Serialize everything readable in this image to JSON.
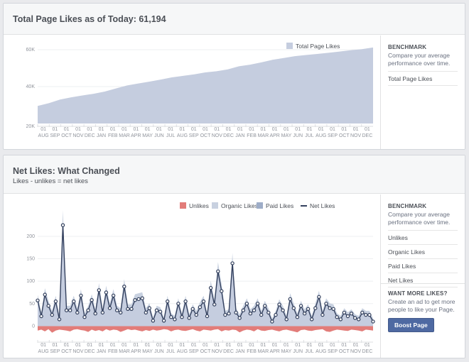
{
  "panel1": {
    "title": "Total Page Likes as of Today: 61,194",
    "benchmark": {
      "title": "BENCHMARK",
      "desc": "Compare your average performance over time.",
      "items": [
        "Total Page Likes"
      ]
    }
  },
  "panel2": {
    "title": "Net Likes: What Changed",
    "subtitle": "Likes - unlikes = net likes",
    "benchmark": {
      "title": "BENCHMARK",
      "desc": "Compare your average performance over time.",
      "items": [
        "Unlikes",
        "Organic Likes",
        "Paid Likes",
        "Net Likes"
      ]
    },
    "ad": {
      "title": "WANT MORE LIKES?",
      "desc": "Create an ad to get more people to like your Page.",
      "button": "Boost Page"
    }
  },
  "colors": {
    "area": "#c5cddf",
    "unlikes": "#e27c79",
    "organic": "#c8d1e0",
    "paid": "#9eadc8",
    "net": "#34415e"
  },
  "chart_data": [
    {
      "type": "area",
      "legend": [
        "Total Page Likes"
      ],
      "x_ticks_top": [
        "01",
        "01",
        "01",
        "01",
        "01",
        "01",
        "01",
        "01",
        "01",
        "01",
        "01",
        "01",
        "01",
        "01",
        "01",
        "01",
        "01",
        "01",
        "01",
        "01",
        "01",
        "01",
        "01",
        "01",
        "01",
        "01",
        "01",
        "01",
        "01"
      ],
      "x_ticks": [
        "AUG",
        "SEP",
        "OCT",
        "NOV",
        "DEC",
        "JAN",
        "FEB",
        "MAR",
        "APR",
        "MAY",
        "JUN",
        "JUL",
        "AUG",
        "SEP",
        "OCT",
        "NOV",
        "DEC",
        "JAN",
        "FEB",
        "MAR",
        "APR",
        "MAY",
        "JUN",
        "JUL",
        "AUG",
        "SEP",
        "OCT",
        "NOV",
        "DEC"
      ],
      "y_ticks": [
        "20K",
        "40K",
        "60K"
      ],
      "ylim": [
        20000,
        60000
      ],
      "series": [
        {
          "name": "Total Page Likes",
          "values": [
            29500,
            31000,
            33000,
            34200,
            35200,
            36100,
            37300,
            39000,
            40600,
            41700,
            42700,
            43800,
            45000,
            45800,
            46600,
            47700,
            48300,
            49300,
            51000,
            51900,
            53100,
            54500,
            55500,
            56500,
            57100,
            57700,
            58300,
            59000,
            59700,
            60300,
            61194
          ]
        }
      ]
    },
    {
      "type": "line",
      "legend": [
        "Unlikes",
        "Organic Likes",
        "Paid Likes",
        "Net Likes"
      ],
      "x_ticks_top": [
        "01",
        "01",
        "01",
        "01",
        "01",
        "01",
        "01",
        "01",
        "01",
        "01",
        "01",
        "01",
        "01",
        "01",
        "01",
        "01",
        "01",
        "01",
        "01",
        "01",
        "01",
        "01",
        "01",
        "01",
        "01",
        "01",
        "01",
        "01",
        "01"
      ],
      "x_ticks": [
        "AUG",
        "SEP",
        "OCT",
        "NOV",
        "DEC",
        "JAN",
        "FEB",
        "MAR",
        "APR",
        "MAY",
        "JUN",
        "JUL",
        "AUG",
        "SEP",
        "OCT",
        "NOV",
        "DEC",
        "JAN",
        "FEB",
        "MAR",
        "APR",
        "MAY",
        "JUN",
        "JUL",
        "AUG",
        "SEP",
        "OCT",
        "NOV",
        "DEC"
      ],
      "y_ticks": [
        "0",
        "50",
        "100",
        "150",
        "200"
      ],
      "ylim": [
        -20,
        230
      ],
      "series": [
        {
          "name": "Net Likes",
          "values": [
            57,
            22,
            70,
            45,
            25,
            55,
            15,
            225,
            35,
            35,
            55,
            30,
            68,
            20,
            35,
            58,
            28,
            80,
            30,
            75,
            40,
            68,
            35,
            30,
            88,
            38,
            38,
            58,
            60,
            62,
            30,
            40,
            12,
            35,
            32,
            12,
            55,
            20,
            15,
            50,
            20,
            55,
            18,
            38,
            25,
            42,
            55,
            22,
            85,
            48,
            122,
            78,
            25,
            28,
            140,
            30,
            18,
            35,
            50,
            28,
            35,
            50,
            25,
            45,
            30,
            10,
            25,
            48,
            35,
            15,
            60,
            40,
            20,
            45,
            28,
            38,
            15,
            40,
            65,
            25,
            50,
            40,
            38,
            20,
            15,
            30,
            22,
            28,
            18,
            15,
            30,
            25,
            25,
            10
          ]
        },
        {
          "name": "Unlikes",
          "values": [
            -10,
            -8,
            -12,
            -7,
            -15,
            -10,
            -8,
            -9,
            -10,
            -12,
            -8,
            -7,
            -9,
            -10,
            -13,
            -8,
            -11,
            -9,
            -12,
            -7,
            -10,
            -8,
            -9,
            -13,
            -10,
            -7,
            -9,
            -8,
            -10,
            -12,
            -9,
            -11,
            -8,
            -10,
            -9,
            -7,
            -8,
            -12,
            -9,
            -8,
            -10,
            -11,
            -9,
            -7,
            -10,
            -12,
            -8,
            -9,
            -10,
            -8,
            -7,
            -12,
            -9,
            -10,
            -8,
            -9,
            -14,
            -10,
            -8,
            -9,
            -12,
            -7,
            -10,
            -11,
            -9,
            -8,
            -10,
            -12,
            -9,
            -8,
            -10,
            -12,
            -14,
            -9,
            -8,
            -10,
            -11,
            -9,
            -8,
            -7,
            -12,
            -13,
            -10,
            -8,
            -9,
            -10,
            -11,
            -8,
            -9,
            -10,
            -12,
            -8,
            -9,
            -10
          ]
        }
      ]
    }
  ]
}
